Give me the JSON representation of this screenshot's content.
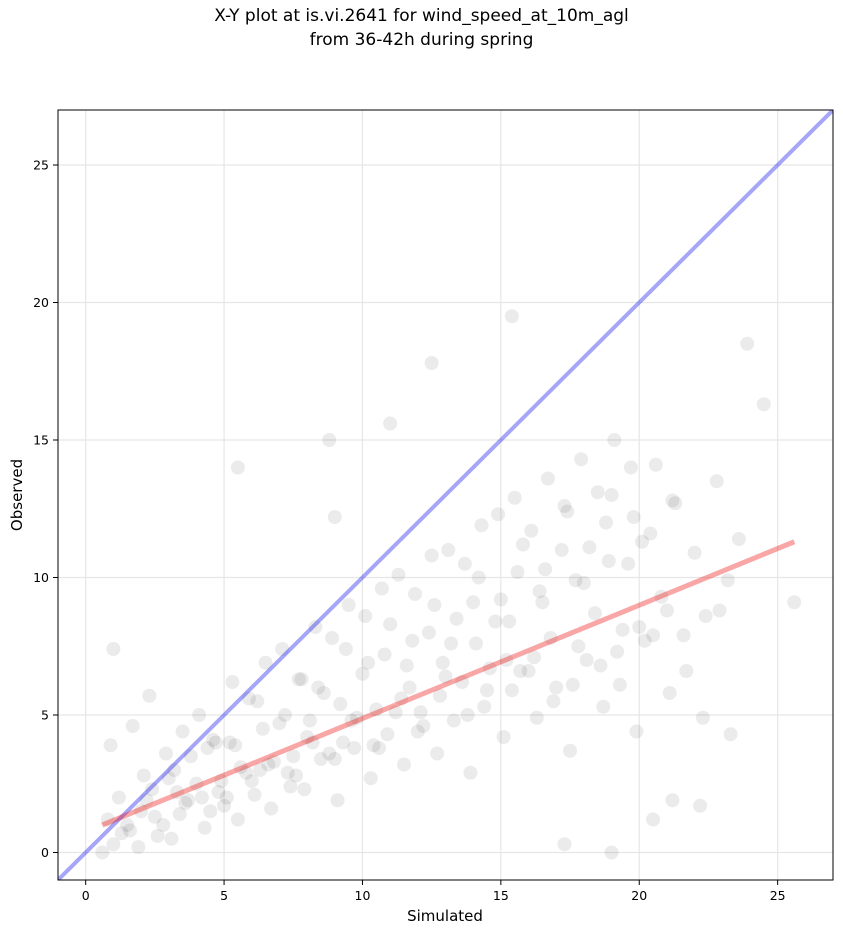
{
  "chart_data": {
    "type": "scatter",
    "title_line1": "X-Y plot at is.vi.2641 for wind_speed_at_10m_agl",
    "title_line2": "from 36-42h during spring",
    "xlabel": "Simulated",
    "ylabel": "Observed",
    "xlim": [
      -1,
      27
    ],
    "ylim": [
      -1,
      27
    ],
    "xticks": [
      0,
      5,
      10,
      15,
      20,
      25
    ],
    "yticks": [
      0,
      5,
      10,
      15,
      20,
      25
    ],
    "grid": true,
    "point_color": "#000000",
    "point_alpha": 0.08,
    "identity_line": {
      "x": [
        -1,
        27
      ],
      "y": [
        -1,
        27
      ],
      "color": "#0000ee",
      "alpha": 0.35
    },
    "fit_line": {
      "x": [
        0.6,
        25.6
      ],
      "y": [
        1.0,
        11.3
      ],
      "color": "#ee0000",
      "alpha": 0.35
    },
    "outliers": {
      "x": [
        5.5,
        8.8,
        11.0,
        12.5,
        15.4,
        23.9,
        9.0,
        1.0,
        20.5,
        21.2,
        22.2,
        23.3,
        25.6,
        17.3,
        19.0,
        24.5
      ],
      "y": [
        14.0,
        15.0,
        15.6,
        17.8,
        19.5,
        18.5,
        12.2,
        7.4,
        1.2,
        1.9,
        1.7,
        4.3,
        9.1,
        0.3,
        0.0,
        16.3
      ]
    },
    "cluster_description_free": true,
    "points": {
      "x": [
        0.8,
        1.2,
        1.6,
        2.0,
        2.4,
        2.8,
        3.2,
        3.6,
        4.0,
        4.4,
        4.8,
        5.2,
        5.6,
        6.0,
        6.4,
        6.8,
        7.2,
        7.6,
        8.0,
        8.4,
        8.8,
        9.2,
        9.6,
        10.0,
        10.4,
        10.8,
        11.2,
        11.6,
        12.0,
        12.4,
        12.8,
        13.2,
        13.6,
        14.0,
        14.4,
        14.8,
        15.2,
        15.6,
        16.0,
        16.4,
        16.8,
        17.2,
        17.6,
        18.0,
        18.4,
        18.8,
        19.2,
        19.6,
        20.0,
        20.4,
        20.8,
        21.2,
        21.6,
        22.0,
        22.4,
        22.8,
        23.2,
        23.6,
        1.0,
        1.5,
        2.2,
        2.6,
        3.0,
        3.4,
        3.8,
        4.2,
        4.6,
        5.0,
        5.4,
        5.8,
        6.2,
        6.6,
        7.0,
        7.4,
        7.8,
        8.2,
        8.6,
        9.0,
        9.4,
        9.8,
        10.2,
        10.6,
        11.0,
        11.4,
        11.8,
        12.2,
        12.6,
        13.0,
        13.4,
        13.8,
        14.2,
        14.6,
        15.0,
        15.4,
        15.8,
        16.2,
        16.6,
        17.0,
        17.4,
        17.8,
        18.2,
        18.6,
        19.0,
        19.4,
        19.8,
        20.2,
        20.6,
        21.0,
        0.6,
        1.3,
        1.9,
        2.5,
        3.1,
        3.7,
        4.3,
        4.9,
        5.5,
        6.1,
        6.7,
        7.3,
        7.9,
        8.5,
        9.1,
        9.7,
        10.3,
        10.9,
        11.5,
        12.1,
        12.7,
        13.3,
        13.9,
        14.5,
        15.1,
        15.7,
        16.3,
        16.9,
        17.5,
        18.1,
        18.7,
        19.3,
        19.9,
        20.5,
        21.1,
        21.7,
        22.3,
        22.9,
        2.1,
        2.9,
        3.5,
        4.1,
        4.7,
        5.3,
        5.9,
        6.5,
        7.1,
        7.7,
        8.3,
        8.9,
        9.5,
        10.1,
        10.7,
        11.3,
        11.9,
        12.5,
        13.1,
        13.7,
        14.3,
        14.9,
        15.5,
        16.1,
        16.7,
        17.3,
        17.9,
        18.5,
        19.1,
        19.7,
        0.9,
        1.7,
        2.3,
        3.3,
        4.5,
        5.1,
        6.3,
        7.5,
        8.1,
        9.3,
        10.5,
        11.7,
        12.9,
        14.1,
        15.3,
        16.5,
        17.7,
        18.9,
        20.1,
        21.3
      ],
      "y": [
        1.2,
        2.0,
        0.8,
        1.5,
        2.3,
        1.0,
        3.0,
        1.8,
        2.5,
        3.8,
        2.2,
        4.0,
        3.1,
        2.6,
        4.5,
        3.3,
        5.0,
        2.8,
        4.2,
        6.0,
        3.6,
        5.4,
        4.8,
        6.5,
        3.9,
        7.2,
        5.1,
        6.8,
        4.4,
        8.0,
        5.7,
        7.6,
        6.2,
        9.1,
        5.3,
        8.4,
        7.0,
        10.2,
        6.6,
        9.5,
        7.8,
        11.0,
        6.1,
        9.8,
        8.7,
        12.0,
        7.3,
        10.5,
        8.2,
        11.6,
        9.3,
        12.8,
        7.9,
        10.9,
        8.6,
        13.5,
        9.9,
        11.4,
        0.3,
        1.0,
        1.9,
        0.6,
        2.7,
        1.4,
        3.5,
        2.0,
        4.1,
        1.7,
        3.9,
        2.9,
        5.5,
        3.2,
        4.7,
        2.4,
        6.3,
        4.0,
        5.8,
        3.4,
        7.4,
        4.9,
        6.9,
        3.8,
        8.3,
        5.6,
        7.7,
        4.6,
        9.0,
        6.4,
        8.5,
        5.0,
        10.0,
        6.7,
        9.2,
        5.9,
        11.2,
        7.1,
        10.3,
        6.0,
        12.4,
        7.5,
        11.1,
        6.8,
        13.0,
        8.1,
        12.2,
        7.7,
        14.1,
        8.8,
        0.0,
        0.7,
        0.2,
        1.3,
        0.5,
        1.9,
        0.9,
        2.6,
        1.2,
        2.1,
        1.6,
        2.9,
        2.3,
        3.4,
        1.9,
        3.8,
        2.7,
        4.3,
        3.2,
        5.1,
        3.6,
        4.8,
        2.9,
        5.9,
        4.2,
        6.6,
        4.9,
        5.5,
        3.7,
        7.0,
        5.3,
        6.1,
        4.4,
        7.9,
        5.8,
        6.6,
        4.9,
        8.8,
        2.8,
        3.6,
        4.4,
        5.0,
        4.0,
        6.2,
        5.6,
        6.9,
        7.4,
        6.3,
        8.2,
        7.8,
        9.0,
        8.6,
        9.6,
        10.1,
        9.4,
        10.8,
        11.0,
        10.5,
        11.9,
        12.3,
        12.9,
        11.7,
        13.6,
        12.6,
        14.3,
        13.1,
        15.0,
        14.0,
        3.9,
        4.6,
        5.7,
        2.2,
        1.5,
        2.0,
        3.0,
        3.5,
        4.8,
        4.0,
        5.2,
        6.0,
        6.9,
        7.6,
        8.4,
        9.1,
        9.9,
        10.6,
        11.3,
        12.7
      ]
    }
  }
}
